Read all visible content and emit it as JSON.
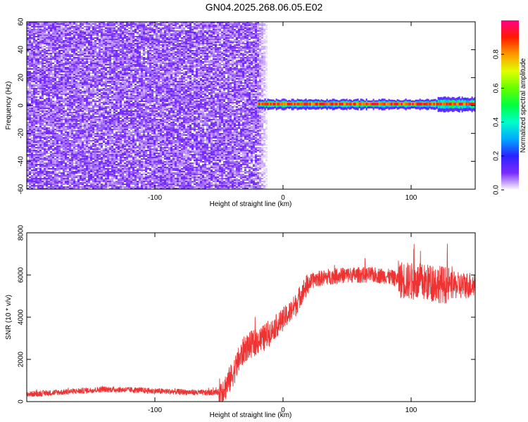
{
  "title": "GN04.2025.268.06.05.E02",
  "chart_data": [
    {
      "type": "heatmap",
      "xlabel": "Height of straight line (km)",
      "ylabel": "Frequency (Hz)",
      "xlim": [
        -200,
        150
      ],
      "ylim": [
        -60,
        60
      ],
      "x_ticks": [
        -100,
        0,
        100
      ],
      "y_ticks": [
        -60,
        -40,
        -20,
        0,
        20,
        40,
        60
      ],
      "colorbar": {
        "label": "Normalized spectral amplitude",
        "range": [
          0,
          1
        ],
        "ticks": [
          0,
          0.2,
          0.4,
          0.6,
          0.8
        ]
      },
      "regions": [
        {
          "x_range": [
            -200,
            -12
          ],
          "freq_range": [
            -60,
            60
          ],
          "amplitude_range": [
            0.0,
            0.1
          ]
        },
        {
          "x_range": [
            -20,
            150
          ],
          "freq_range": [
            -4,
            4
          ],
          "amplitude_range": [
            0.1,
            0.95
          ],
          "peak_frequency": 1
        }
      ]
    },
    {
      "type": "line",
      "xlabel": "Height of straight line (km)",
      "ylabel": "SNR (10 * v/v)",
      "xlim": [
        -200,
        150
      ],
      "ylim": [
        0,
        8000
      ],
      "x_ticks": [
        -100,
        0,
        100
      ],
      "y_ticks": [
        0,
        2000,
        4000,
        6000,
        8000
      ],
      "series": [
        {
          "color": "#ee3333",
          "x": [
            -200,
            -180,
            -160,
            -140,
            -120,
            -100,
            -80,
            -60,
            -50,
            -45,
            -40,
            -35,
            -30,
            -25,
            -20,
            -15,
            -10,
            -5,
            0,
            5,
            10,
            15,
            20,
            25,
            30,
            40,
            50,
            60,
            70,
            80,
            90,
            100,
            110,
            120,
            130,
            140,
            150
          ],
          "y": [
            350,
            420,
            500,
            580,
            560,
            500,
            460,
            420,
            450,
            700,
            1200,
            1900,
            2500,
            2700,
            2850,
            3000,
            3300,
            3600,
            3900,
            4200,
            4600,
            5200,
            5600,
            5800,
            5850,
            5950,
            6000,
            6000,
            6000,
            5950,
            5800,
            5700,
            5650,
            5600,
            5500,
            5500,
            5550
          ]
        }
      ]
    }
  ]
}
